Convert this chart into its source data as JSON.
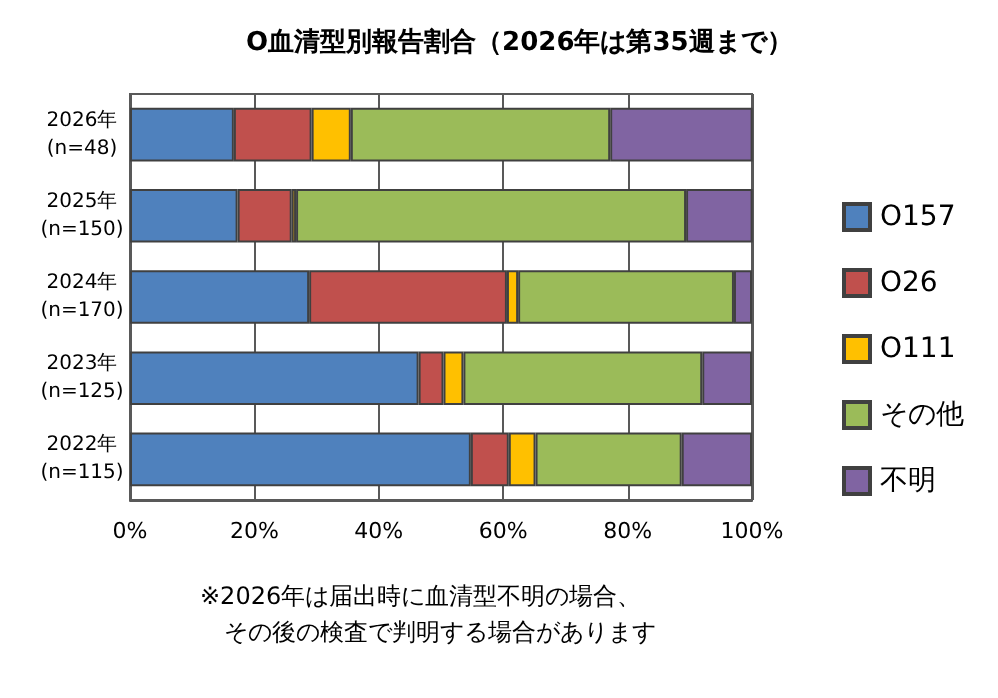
{
  "chart_data": {
    "type": "bar",
    "orientation": "horizontal",
    "stacked": true,
    "title": "O血清型別報告割合（2026年は第35週まで）",
    "categories": [
      "2026年\n(n=48)",
      "2025年\n(n=150)",
      "2024年\n(n=170)",
      "2023年\n(n=125)",
      "2022年\n(n=115)"
    ],
    "series": [
      {
        "name": "O157",
        "color": "#4f81bd",
        "values": [
          16.7,
          17.3,
          28.8,
          46.4,
          54.8
        ]
      },
      {
        "name": "O26",
        "color": "#c0504d",
        "values": [
          12.5,
          8.7,
          31.8,
          4.0,
          6.1
        ]
      },
      {
        "name": "O111",
        "color": "#ffc000",
        "values": [
          6.3,
          0.7,
          1.8,
          3.2,
          4.3
        ]
      },
      {
        "name": "その他",
        "color": "#9bbb59",
        "values": [
          41.7,
          62.7,
          34.7,
          38.4,
          23.5
        ]
      },
      {
        "name": "不明",
        "color": "#8064a2",
        "values": [
          22.9,
          10.7,
          2.9,
          8.0,
          11.3
        ]
      }
    ],
    "xlim": [
      0,
      100
    ],
    "xticks": [
      {
        "value": 0,
        "label": "0%"
      },
      {
        "value": 20,
        "label": "20%"
      },
      {
        "value": 40,
        "label": "40%"
      },
      {
        "value": 60,
        "label": "60%"
      },
      {
        "value": 80,
        "label": "80%"
      },
      {
        "value": 100,
        "label": "100%"
      }
    ],
    "grid": "x",
    "legend": "right",
    "annotations": [
      "※2026年は届出時に血清型不明の場合、",
      "その後の検査で判明する場合があります"
    ]
  }
}
